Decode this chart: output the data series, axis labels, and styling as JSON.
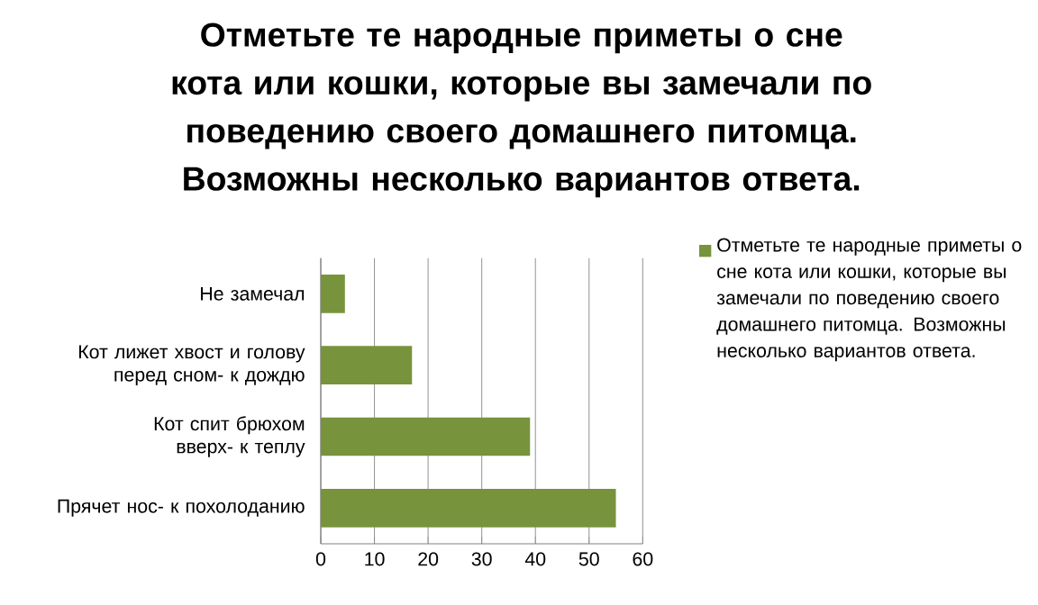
{
  "chart_data": {
    "type": "bar",
    "orientation": "horizontal",
    "title": "Отметьте те народные приметы о сне кота или кошки, которые вы замечали по поведению своего домашнего питомца. Возможны несколько вариантов ответа.",
    "categories": [
      "Не замечал",
      "Кот лижет хвост и голову перед сном- к дождю",
      "Кот спит брюхом вверх- к теплу",
      "Прячет нос- к похолоданию"
    ],
    "series": [
      {
        "name": "Отметьте те народные приметы о сне кота или кошки, которые вы замечали по поведению своего домашнего питомца. Возможны несколько вариантов ответа.",
        "color": "#77933c",
        "values": [
          4.5,
          17,
          39,
          55
        ]
      }
    ],
    "xlim": [
      0,
      60
    ],
    "xticks": [
      0,
      10,
      20,
      30,
      40,
      50,
      60
    ],
    "grid": "x",
    "legend": "right"
  }
}
